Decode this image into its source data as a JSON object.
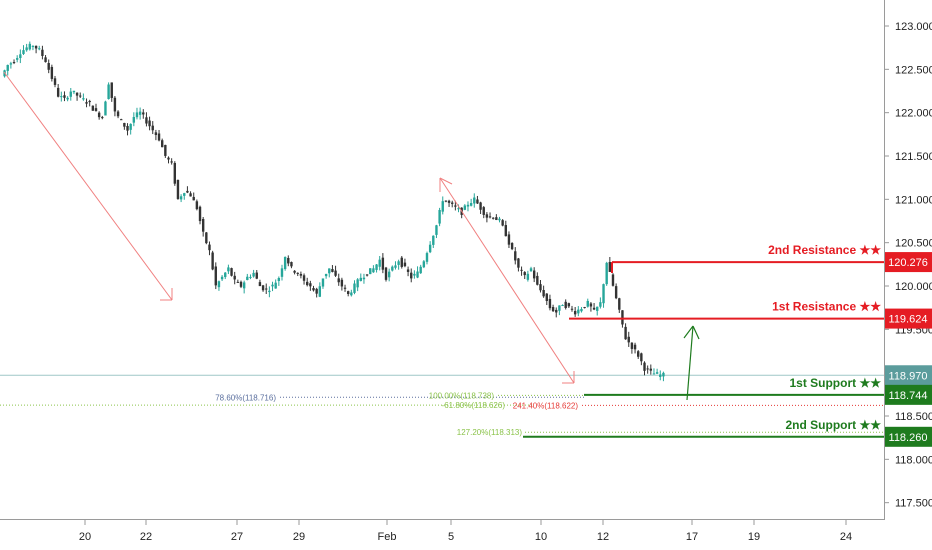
{
  "chart_data": {
    "type": "candlestick",
    "instrument_colors": {
      "up": "#26a69a",
      "down": "#333333",
      "resistance": "#e51c23",
      "support": "#1e7b1e",
      "arrow_down": "#f08080",
      "fib_blue": "#5b6f9e",
      "fib_green": "#8bc34a",
      "fib_red": "#e53935"
    },
    "y_axis": {
      "ylim": [
        117.3,
        123.3
      ],
      "ticks": [
        "117.500",
        "118.000",
        "118.500",
        "119.000",
        "119.500",
        "120.000",
        "120.500",
        "121.000",
        "121.500",
        "122.000",
        "122.500",
        "123.000"
      ],
      "tick_values": [
        117.5,
        118.0,
        118.5,
        119.0,
        119.5,
        120.0,
        120.5,
        121.0,
        121.5,
        122.0,
        122.5,
        123.0
      ],
      "position": "right"
    },
    "x_axis": {
      "ticks": [
        "20",
        "22",
        "27",
        "29",
        "Feb",
        "5",
        "10",
        "12",
        "17",
        "19",
        "24"
      ]
    },
    "current_price": {
      "value": 118.97,
      "label": "118.970",
      "color": "#5b9c9c"
    },
    "levels": [
      {
        "name": "2nd Resistance ★★",
        "value": 120.276,
        "label": "120.276",
        "color": "#e51c23"
      },
      {
        "name": "1st Resistance ★★",
        "value": 119.624,
        "label": "119.624",
        "color": "#e51c23"
      },
      {
        "name": "1st Support ★★",
        "value": 118.744,
        "label": "118.744",
        "color": "#1e7b1e"
      },
      {
        "name": "2nd Support ★★",
        "value": 118.26,
        "label": "118.260",
        "color": "#1e7b1e"
      }
    ],
    "fib_labels": [
      {
        "text": "78.60%(118.716)",
        "value": 118.716,
        "color": "#5b6f9e"
      },
      {
        "text": "100.00%(118.738)",
        "value": 118.738,
        "color": "#8bc34a"
      },
      {
        "text": "-61.80%(118.626)",
        "value": 118.626,
        "color": "#8bc34a"
      },
      {
        "text": "241.40%(118.622)",
        "value": 118.622,
        "color": "#e53935"
      },
      {
        "text": "127.20%(118.313)",
        "value": 118.313,
        "color": "#8bc34a"
      }
    ],
    "price_path": [
      122.42,
      122.55,
      122.6,
      122.7,
      122.75,
      122.78,
      122.72,
      122.6,
      122.4,
      122.2,
      122.15,
      122.25,
      122.2,
      122.15,
      122.1,
      122.0,
      121.95,
      122.35,
      122.0,
      121.9,
      121.8,
      121.95,
      122.0,
      121.9,
      121.8,
      121.7,
      121.5,
      121.4,
      121.0,
      121.1,
      121.05,
      120.9,
      120.6,
      120.4,
      120.0,
      120.1,
      120.2,
      120.05,
      120.0,
      120.1,
      120.15,
      120.0,
      119.95,
      120.0,
      120.1,
      120.35,
      120.2,
      120.15,
      120.05,
      120.0,
      119.9,
      120.1,
      120.2,
      120.1,
      120.0,
      119.9,
      120.0,
      120.1,
      120.15,
      120.2,
      120.3,
      120.1,
      120.2,
      120.3,
      120.2,
      120.1,
      120.15,
      120.3,
      120.5,
      120.7,
      121.0,
      120.95,
      120.9,
      120.85,
      120.95,
      121.0,
      120.9,
      120.8,
      120.8,
      120.75,
      120.6,
      120.4,
      120.2,
      120.1,
      120.2,
      120.0,
      119.9,
      119.75,
      119.7,
      119.8,
      119.75,
      119.7,
      119.75,
      119.8,
      119.7,
      119.8,
      120.276,
      120.0,
      119.7,
      119.4,
      119.3,
      119.2,
      119.05,
      119.0,
      118.98,
      118.97
    ]
  }
}
